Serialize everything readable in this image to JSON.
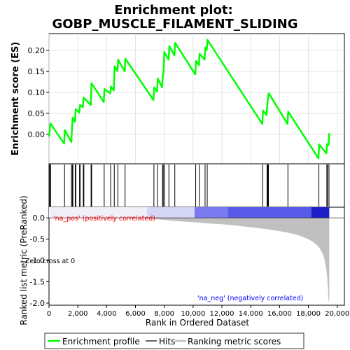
{
  "title_line1": "Enrichment plot:",
  "title_line2": "GOBP_MUSCLE_FILAMENT_SLIDING",
  "colors": {
    "enrichment": "#00ff00",
    "hits": "#000000",
    "ranking_fill": "#c0c0c0",
    "pos_label": "#ff0000",
    "neg_label": "#0000ff",
    "heat_pos": "#d8d8f4",
    "heat_mid": "#6b6bf0",
    "heat_neg": "#2020b8"
  },
  "chart_data": [
    {
      "type": "line",
      "panel": "enrichment",
      "ylabel": "Enrichment score (ES)",
      "ylim": [
        -0.07,
        0.24
      ],
      "yticks": [
        "0.00",
        "0.05",
        "0.10",
        "0.15",
        "0.20"
      ],
      "ytick_values": [
        0.0,
        0.05,
        0.1,
        0.15,
        0.2
      ],
      "grid": true,
      "x": [
        0,
        100,
        1050,
        1100,
        1550,
        1600,
        1650,
        1700,
        1800,
        1850,
        2100,
        2150,
        2350,
        2400,
        2900,
        2950,
        3800,
        3850,
        4250,
        4300,
        4500,
        4550,
        4750,
        4800,
        5250,
        5300,
        7250,
        7300,
        7500,
        7550,
        7850,
        7900,
        7950,
        8000,
        8300,
        8350,
        8700,
        8750,
        10150,
        10200,
        10400,
        10450,
        10800,
        10850,
        10950,
        11000,
        14800,
        14850,
        15100,
        15150,
        15200,
        15250,
        16550,
        16600,
        18700,
        18750,
        19250,
        19300,
        19400,
        19450
      ],
      "y": [
        -0.005,
        0.026,
        -0.022,
        0.01,
        -0.018,
        0.018,
        0.04,
        0.035,
        0.03,
        0.06,
        0.052,
        0.07,
        0.065,
        0.088,
        0.07,
        0.122,
        0.077,
        0.108,
        0.098,
        0.114,
        0.105,
        0.162,
        0.151,
        0.178,
        0.15,
        0.18,
        0.082,
        0.112,
        0.102,
        0.133,
        0.112,
        0.141,
        0.148,
        0.196,
        0.178,
        0.21,
        0.188,
        0.218,
        0.143,
        0.175,
        0.165,
        0.192,
        0.178,
        0.207,
        0.201,
        0.225,
        0.025,
        0.057,
        0.046,
        0.071,
        0.09,
        0.098,
        0.025,
        0.054,
        -0.057,
        -0.024,
        -0.045,
        -0.023,
        -0.025,
        0.003
      ]
    },
    {
      "type": "scatter",
      "panel": "hits",
      "hit_positions": [
        50,
        120,
        1080,
        1560,
        1620,
        1660,
        1820,
        1860,
        2120,
        2160,
        2380,
        2420,
        2920,
        2960,
        3830,
        4280,
        4530,
        4780,
        5280,
        7280,
        7530,
        7880,
        7930,
        8010,
        8320,
        8730,
        10180,
        10430,
        10830,
        10980,
        14830,
        15130,
        15180,
        15230,
        16580,
        18730,
        19280,
        19330,
        19430
      ]
    },
    {
      "type": "area",
      "panel": "ranking",
      "xlabel": "Rank in Ordered Dataset",
      "ylabel": "Ranked list metric (PreRanked)",
      "ylim": [
        -2.05,
        0.25
      ],
      "yticks": [
        "0.0",
        "-0.5",
        "-1.0",
        "-1.5",
        "-2.0"
      ],
      "ytick_values": [
        0.0,
        -0.5,
        -1.0,
        -1.5,
        -2.0
      ],
      "xlim": [
        0,
        20500
      ],
      "xticks": [
        "0",
        "2,000",
        "4,000",
        "6,000",
        "8,000",
        "10,000",
        "12,000",
        "14,000",
        "16,000",
        "18,000",
        "20,000"
      ],
      "xtick_values": [
        0,
        2000,
        4000,
        6000,
        8000,
        10000,
        12000,
        14000,
        16000,
        18000,
        20000
      ],
      "x": [
        0,
        2000,
        4000,
        6000,
        7000,
        8000,
        9000,
        10000,
        11000,
        12000,
        13000,
        14000,
        15000,
        16000,
        17000,
        17500,
        18000,
        18300,
        18600,
        18800,
        19000,
        19100,
        19200,
        19300,
        19350,
        19400,
        19450
      ],
      "y": [
        0.0,
        0.0,
        0.0,
        0.0,
        -0.02,
        -0.05,
        -0.08,
        -0.1,
        -0.13,
        -0.15,
        -0.18,
        -0.22,
        -0.26,
        -0.31,
        -0.38,
        -0.43,
        -0.5,
        -0.56,
        -0.64,
        -0.72,
        -0.85,
        -0.95,
        -1.1,
        -1.35,
        -1.6,
        -1.95,
        -1.95
      ],
      "annotations": {
        "pos": "'na_pos' (positively correlated)",
        "neg": "'na_neg' (negatively correlated)",
        "zero_cross": "Zero cross at 0"
      }
    }
  ],
  "heatmap_segments": [
    {
      "from": 0,
      "to": 6800,
      "color": "#f0f0fa"
    },
    {
      "from": 6800,
      "to": 10100,
      "color": "#d6d6f6"
    },
    {
      "from": 10100,
      "to": 12400,
      "color": "#7a7af2"
    },
    {
      "from": 12400,
      "to": 18200,
      "color": "#5a5ae8"
    },
    {
      "from": 18200,
      "to": 19450,
      "color": "#1e1ec8"
    }
  ],
  "legend": {
    "items": [
      {
        "label": "Enrichment profile",
        "kind": "enrichment"
      },
      {
        "label": "Hits",
        "kind": "hits"
      },
      {
        "label": "Ranking metric scores",
        "kind": "ranking"
      }
    ]
  }
}
